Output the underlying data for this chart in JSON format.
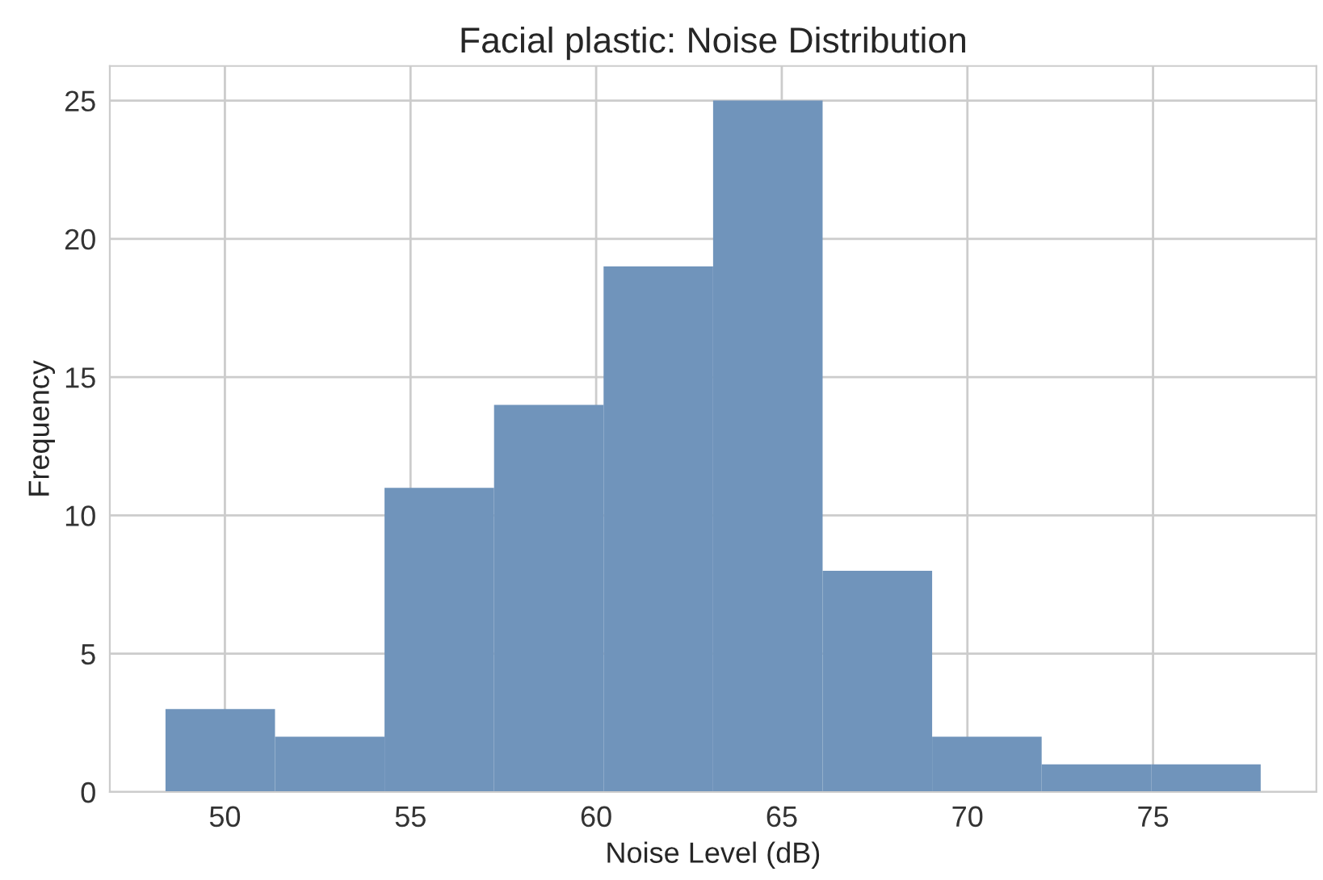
{
  "chart_data": {
    "type": "histogram",
    "title": "Facial plastic: Noise Distribution",
    "xlabel": "Noise Level (dB)",
    "ylabel": "Frequency",
    "bins": [
      48.4,
      51.35,
      54.3,
      57.25,
      60.2,
      63.15,
      66.1,
      69.05,
      72.0,
      74.95,
      77.9
    ],
    "values": [
      3,
      2,
      11,
      14,
      19,
      25,
      8,
      2,
      1,
      1
    ],
    "color": "#7094bb",
    "xlim": [
      46.9,
      79.4
    ],
    "ylim": [
      0,
      26.25
    ],
    "xticks": [
      50,
      55,
      60,
      65,
      70,
      75
    ],
    "yticks": [
      0,
      5,
      10,
      15,
      20,
      25
    ],
    "grid": true
  }
}
